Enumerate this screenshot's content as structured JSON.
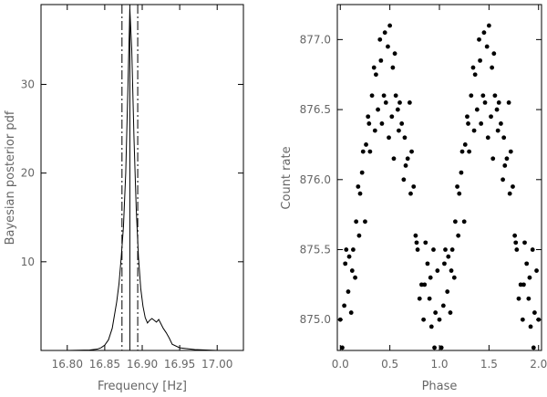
{
  "chart_data": [
    {
      "type": "line",
      "xlabel": "Frequency [Hz]",
      "ylabel": "Bayesian posterior pdf",
      "xlim": [
        16.765,
        17.035
      ],
      "ylim": [
        0,
        39
      ],
      "xticks": [
        16.8,
        16.85,
        16.9,
        16.95,
        17.0
      ],
      "xtick_labels": [
        "16.80",
        "16.85",
        "16.90",
        "16.95",
        "17.00"
      ],
      "yticks": [
        10,
        20,
        30
      ],
      "ytick_labels": [
        "10",
        "20",
        "30"
      ],
      "grid": false,
      "series": [
        {
          "x": [
            16.765,
            16.8,
            16.83,
            16.84,
            16.845,
            16.85,
            16.855,
            16.86,
            16.863,
            16.866,
            16.869,
            16.872,
            16.875,
            16.878,
            16.881,
            16.8835,
            16.886,
            16.889,
            16.892,
            16.895,
            16.898,
            16.901,
            16.904,
            16.907,
            16.91,
            16.913,
            16.916,
            16.919,
            16.922,
            16.925,
            16.928,
            16.932,
            16.936,
            16.94,
            16.95,
            16.97,
            17.0,
            17.035
          ],
          "y": [
            0.0,
            0.0,
            0.05,
            0.15,
            0.3,
            0.6,
            1.2,
            2.5,
            4.0,
            5.5,
            7.5,
            10.5,
            14.0,
            20.0,
            30.0,
            38.5,
            34.0,
            24.0,
            16.0,
            10.5,
            7.0,
            5.0,
            3.7,
            3.1,
            3.4,
            3.6,
            3.4,
            3.2,
            3.5,
            3.0,
            2.5,
            2.0,
            1.4,
            0.7,
            0.3,
            0.1,
            0.0,
            0.0
          ]
        }
      ],
      "vlines": [
        {
          "x": 16.8835,
          "style": "solid"
        },
        {
          "x": 16.873,
          "style": "dashdot"
        },
        {
          "x": 16.894,
          "style": "dashdot"
        }
      ]
    },
    {
      "type": "scatter",
      "xlabel": "Phase",
      "ylabel": "Count rate",
      "xlim": [
        -0.03,
        2.03
      ],
      "ylim": [
        874.78,
        877.25
      ],
      "xticks": [
        0.0,
        0.5,
        1.0,
        1.5,
        2.0
      ],
      "xtick_labels": [
        "0.0",
        "0.5",
        "1.0",
        "1.5",
        "2.0"
      ],
      "yticks": [
        875.0,
        875.5,
        876.0,
        876.5,
        877.0
      ],
      "ytick_labels": [
        "875.0",
        "875.5",
        "876.0",
        "876.5",
        "877.0"
      ],
      "grid": false,
      "series": [
        {
          "x": [
            0.0,
            0.02,
            0.04,
            0.05,
            0.06,
            0.08,
            0.09,
            0.11,
            0.12,
            0.13,
            0.15,
            0.16,
            0.18,
            0.19,
            0.2,
            0.22,
            0.23,
            0.25,
            0.26,
            0.28,
            0.29,
            0.3,
            0.32,
            0.34,
            0.35,
            0.36,
            0.38,
            0.4,
            0.41,
            0.42,
            0.44,
            0.45,
            0.46,
            0.48,
            0.49,
            0.5,
            0.52,
            0.53,
            0.54,
            0.55,
            0.56,
            0.58,
            0.59,
            0.6,
            0.62,
            0.64,
            0.65,
            0.66,
            0.68,
            0.7,
            0.71,
            0.72,
            0.74,
            0.76,
            0.77,
            0.78,
            0.8,
            0.82,
            0.84,
            0.85,
            0.86,
            0.88,
            0.9,
            0.91,
            0.92,
            0.94,
            0.95,
            0.96,
            0.98,
            1.0,
            1.02,
            1.04,
            1.05,
            1.06,
            1.08,
            1.09,
            1.11,
            1.12,
            1.13,
            1.15,
            1.16,
            1.18,
            1.19,
            1.2,
            1.22,
            1.23,
            1.25,
            1.26,
            1.28,
            1.29,
            1.3,
            1.32,
            1.34,
            1.35,
            1.36,
            1.38,
            1.4,
            1.41,
            1.42,
            1.44,
            1.45,
            1.46,
            1.48,
            1.49,
            1.5,
            1.52,
            1.53,
            1.54,
            1.55,
            1.56,
            1.58,
            1.59,
            1.6,
            1.62,
            1.64,
            1.65,
            1.66,
            1.68,
            1.7,
            1.71,
            1.72,
            1.74,
            1.76,
            1.77,
            1.78,
            1.8,
            1.82,
            1.84,
            1.85,
            1.86,
            1.88,
            1.9,
            1.91,
            1.92,
            1.94,
            1.95,
            1.96,
            1.98,
            2.0
          ],
          "y": [
            875.0,
            874.8,
            875.1,
            875.4,
            875.5,
            875.2,
            875.45,
            875.05,
            875.35,
            875.5,
            875.3,
            875.7,
            875.95,
            875.6,
            875.9,
            876.05,
            876.2,
            875.7,
            876.25,
            876.45,
            876.4,
            876.2,
            876.6,
            876.8,
            876.35,
            876.75,
            876.5,
            877.0,
            876.85,
            876.4,
            876.6,
            877.05,
            876.55,
            876.95,
            876.3,
            877.1,
            876.45,
            876.8,
            876.15,
            876.9,
            876.6,
            876.5,
            876.35,
            876.55,
            876.4,
            876.0,
            876.3,
            876.1,
            876.15,
            876.55,
            875.9,
            876.2,
            875.95,
            875.6,
            875.55,
            875.5,
            875.15,
            875.25,
            875.0,
            875.25,
            875.55,
            875.4,
            875.15,
            875.3,
            874.95,
            875.5,
            874.8,
            875.05,
            875.35,
            875.0,
            874.8,
            875.1,
            875.4,
            875.5,
            875.2,
            875.45,
            875.05,
            875.35,
            875.5,
            875.3,
            875.7,
            875.95,
            875.6,
            875.9,
            876.05,
            876.2,
            875.7,
            876.25,
            876.45,
            876.4,
            876.2,
            876.6,
            876.8,
            876.35,
            876.75,
            876.5,
            877.0,
            876.85,
            876.4,
            876.6,
            877.05,
            876.55,
            876.95,
            876.3,
            877.1,
            876.45,
            876.8,
            876.15,
            876.9,
            876.6,
            876.5,
            876.35,
            876.55,
            876.4,
            876.0,
            876.3,
            876.1,
            876.15,
            876.55,
            875.9,
            876.2,
            875.95,
            875.6,
            875.55,
            875.5,
            875.15,
            875.25,
            875.0,
            875.25,
            875.55,
            875.4,
            875.15,
            875.3,
            874.95,
            875.5,
            874.8,
            875.05,
            875.35,
            875.0
          ]
        }
      ]
    }
  ]
}
